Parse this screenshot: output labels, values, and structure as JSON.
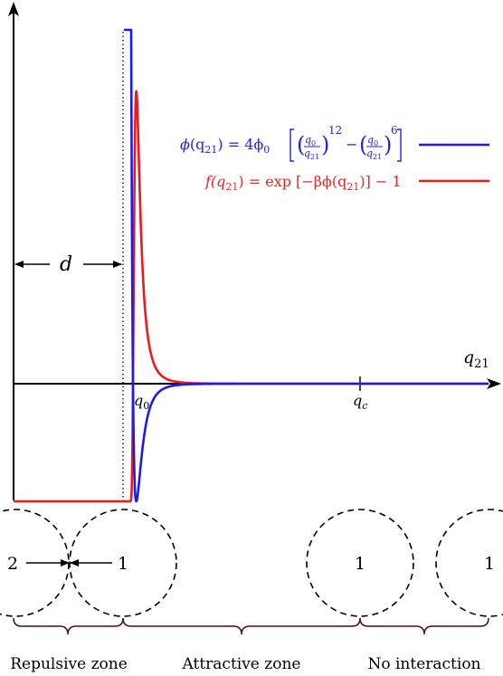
{
  "axes": {
    "x_label": "q",
    "x_label_sub": "21",
    "tick_q0": "q",
    "tick_q0_sub": "0",
    "tick_qc": "q",
    "tick_qc_sub": "c",
    "d_label": "d"
  },
  "legend": {
    "phi": {
      "lhs_phi": "ϕ",
      "lhs_open": "(q",
      "lhs_sub": "21",
      "eq": ") = 4ϕ",
      "phi_sub": "0",
      "frac_num": "q",
      "frac_num_sub": "0",
      "frac_den": "q",
      "frac_den_sub": "21",
      "exp12": "12",
      "minus": "−",
      "exp6": "6",
      "color": "#2222ee"
    },
    "f": {
      "text_a": "f(q",
      "sub_a": "21",
      "text_b": ") = exp [−βϕ(q",
      "sub_b": "21",
      "text_c": ")] − 1",
      "color": "#ee2222"
    }
  },
  "particles": {
    "label_2": "2",
    "label_1a": "1",
    "label_1b": "1",
    "label_1c": "1"
  },
  "zones": [
    "Repulsive zone",
    "Attractive zone",
    "No interaction"
  ],
  "curves": {
    "phi_color": "#1a1aee",
    "f_color": "#ee1a1a"
  }
}
